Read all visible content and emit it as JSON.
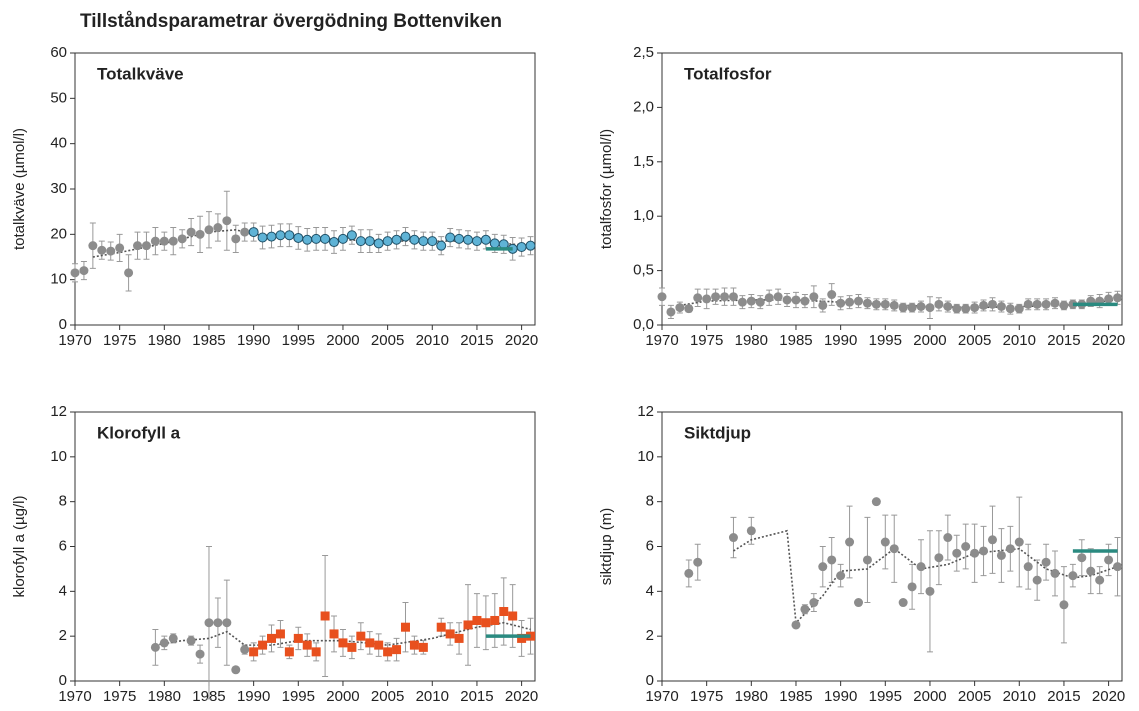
{
  "title": "Tillståndsparametrar övergödning Bottenviken",
  "chart_data": [
    {
      "type": "scatter",
      "title": "Totalkväve",
      "y_label": "totalkväve (µmol/l)",
      "xlim": [
        1970,
        2021.5
      ],
      "ylim": [
        0,
        60
      ],
      "xticks": [
        1970,
        1975,
        1980,
        1985,
        1990,
        1995,
        2000,
        2005,
        2010,
        2015,
        2020
      ],
      "yticks": [
        0,
        10,
        20,
        30,
        40,
        50,
        60
      ],
      "series": [
        {
          "color": "#8c8c8c",
          "marker": "circle",
          "x": [
            1970,
            1971,
            1972,
            1973,
            1974,
            1975,
            1976,
            1977,
            1978,
            1979,
            1980,
            1981,
            1982,
            1983,
            1984,
            1985,
            1986,
            1987,
            1988,
            1989
          ],
          "values": [
            11.5,
            12,
            17.5,
            16.5,
            16.3,
            17,
            11.5,
            17.5,
            17.5,
            18.5,
            18.5,
            18.5,
            19,
            20.5,
            20,
            21,
            21.5,
            23,
            19,
            20.5
          ],
          "errors": [
            2,
            2,
            5,
            2,
            2,
            3,
            4,
            3,
            3,
            3,
            2,
            3,
            2,
            3,
            4,
            4,
            3,
            6.5,
            3,
            2
          ]
        },
        {
          "color": "#5fb3d6",
          "marker": "circle-outline",
          "x": [
            1990,
            1991,
            1992,
            1993,
            1994,
            1995,
            1996,
            1997,
            1998,
            1999,
            2000,
            2001,
            2002,
            2003,
            2004,
            2005,
            2006,
            2007,
            2008,
            2009,
            2010,
            2011,
            2012,
            2013,
            2014,
            2015,
            2016,
            2017,
            2018,
            2019,
            2020,
            2021
          ],
          "values": [
            20.5,
            19.3,
            19.5,
            19.8,
            19.8,
            19.2,
            18.8,
            19,
            19,
            18.3,
            19,
            19.8,
            18.5,
            18.5,
            18,
            18.5,
            18.8,
            19.5,
            18.8,
            18.5,
            18.5,
            17.5,
            19.3,
            19,
            18.8,
            18.5,
            18.8,
            18,
            17.8,
            16.8,
            17.2,
            17.5
          ],
          "errors": [
            2,
            2.5,
            2.5,
            2.5,
            2.5,
            2.5,
            2.5,
            2.5,
            2.5,
            2.5,
            2.5,
            2,
            2.5,
            2.5,
            2,
            2,
            2,
            2,
            2,
            2,
            2,
            2,
            2,
            2,
            2,
            2,
            2,
            2,
            2,
            2.5,
            2,
            2
          ]
        }
      ],
      "trend": {
        "color": "#555555",
        "x": [
          1972,
          1975,
          1980,
          1985,
          1988,
          1990,
          1995,
          2000,
          2005,
          2010,
          2015,
          2021
        ],
        "values": [
          15,
          16,
          18,
          20.5,
          21,
          20,
          19.3,
          18.8,
          18.5,
          18.5,
          18.5,
          17.5
        ]
      },
      "target": {
        "color": "#2a8a80",
        "x": [
          2016,
          2019
        ],
        "values": [
          16.8,
          16.8
        ]
      }
    },
    {
      "type": "scatter",
      "title": "Totalfosfor",
      "y_label": "totalfosfor (µmol/l)",
      "xlim": [
        1970,
        2021.5
      ],
      "ylim": [
        0,
        2.5
      ],
      "xticks": [
        1970,
        1975,
        1980,
        1985,
        1990,
        1995,
        2000,
        2005,
        2010,
        2015,
        2020
      ],
      "yticks": [
        {
          "value": 0,
          "label": "0,0"
        },
        {
          "value": 0.5,
          "label": "0,5"
        },
        {
          "value": 1,
          "label": "1,0"
        },
        {
          "value": 1.5,
          "label": "1,5"
        },
        {
          "value": 2,
          "label": "2,0"
        },
        {
          "value": 2.5,
          "label": "2,5"
        }
      ],
      "series": [
        {
          "color": "#8c8c8c",
          "marker": "circle",
          "x": [
            1970,
            1971,
            1972,
            1973,
            1974,
            1975,
            1976,
            1977,
            1978,
            1979,
            1980,
            1981,
            1982,
            1983,
            1984,
            1985,
            1986,
            1987,
            1988,
            1989,
            1990,
            1991,
            1992,
            1993,
            1994,
            1995,
            1996,
            1997,
            1998,
            1999,
            2000,
            2001,
            2002,
            2003,
            2004,
            2005,
            2006,
            2007,
            2008,
            2009,
            2010,
            2011,
            2012,
            2013,
            2014,
            2015,
            2016,
            2017,
            2018,
            2019,
            2020,
            2021
          ],
          "values": [
            0.26,
            0.12,
            0.16,
            0.15,
            0.25,
            0.24,
            0.26,
            0.26,
            0.26,
            0.21,
            0.22,
            0.21,
            0.25,
            0.26,
            0.23,
            0.23,
            0.22,
            0.26,
            0.18,
            0.28,
            0.2,
            0.21,
            0.22,
            0.2,
            0.19,
            0.19,
            0.18,
            0.16,
            0.16,
            0.17,
            0.16,
            0.19,
            0.17,
            0.15,
            0.15,
            0.16,
            0.18,
            0.19,
            0.17,
            0.15,
            0.15,
            0.19,
            0.19,
            0.19,
            0.2,
            0.18,
            0.19,
            0.19,
            0.22,
            0.22,
            0.24,
            0.25
          ],
          "errors": [
            0.08,
            0.06,
            0.05,
            0.03,
            0.08,
            0.09,
            0.07,
            0.08,
            0.08,
            0.06,
            0.06,
            0.06,
            0.07,
            0.07,
            0.06,
            0.07,
            0.06,
            0.1,
            0.06,
            0.1,
            0.06,
            0.06,
            0.06,
            0.05,
            0.05,
            0.05,
            0.05,
            0.04,
            0.04,
            0.05,
            0.1,
            0.06,
            0.05,
            0.04,
            0.04,
            0.05,
            0.05,
            0.06,
            0.05,
            0.05,
            0.04,
            0.05,
            0.05,
            0.05,
            0.05,
            0.04,
            0.04,
            0.04,
            0.05,
            0.06,
            0.06,
            0.06
          ]
        }
      ],
      "trend": {
        "color": "#555555",
        "x": [
          1972,
          1975,
          1980,
          1985,
          1990,
          1995,
          2000,
          2005,
          2010,
          2015,
          2021
        ],
        "values": [
          0.18,
          0.22,
          0.23,
          0.23,
          0.21,
          0.19,
          0.17,
          0.16,
          0.17,
          0.18,
          0.23
        ]
      },
      "target": {
        "color": "#2a8a80",
        "x": [
          2016,
          2021
        ],
        "values": [
          0.19,
          0.19
        ]
      }
    },
    {
      "type": "scatter",
      "title": "Klorofyll a",
      "y_label": "klorofyll a (µg/l)",
      "xlim": [
        1970,
        2021.5
      ],
      "ylim": [
        0,
        12
      ],
      "xticks": [
        1970,
        1975,
        1980,
        1985,
        1990,
        1995,
        2000,
        2005,
        2010,
        2015,
        2020
      ],
      "yticks": [
        0,
        2,
        4,
        6,
        8,
        10,
        12
      ],
      "series": [
        {
          "color": "#8c8c8c",
          "marker": "circle",
          "x": [
            1979,
            1980,
            1981,
            1983,
            1984,
            1985,
            1986,
            1987,
            1988,
            1989
          ],
          "values": [
            1.5,
            1.7,
            1.9,
            1.8,
            1.2,
            2.6,
            2.6,
            2.6,
            0.5,
            1.4
          ],
          "errors": [
            0.8,
            0.3,
            0.2,
            0.2,
            0.4,
            3.4,
            1.1,
            1.9,
            0.1,
            0.2
          ]
        },
        {
          "color": "#e8501e",
          "marker": "square",
          "x": [
            1990,
            1991,
            1992,
            1993,
            1994,
            1995,
            1996,
            1997,
            1998,
            1999,
            2000,
            2001,
            2002,
            2003,
            2004,
            2005,
            2006,
            2007,
            2008,
            2009,
            2011,
            2012,
            2013,
            2014,
            2015,
            2016,
            2017,
            2018,
            2019,
            2020,
            2021
          ],
          "values": [
            1.3,
            1.6,
            1.9,
            2.1,
            1.3,
            1.9,
            1.6,
            1.3,
            2.9,
            2.1,
            1.7,
            1.5,
            2.0,
            1.7,
            1.6,
            1.3,
            1.4,
            2.4,
            1.6,
            1.5,
            2.4,
            2.1,
            1.9,
            2.5,
            2.7,
            2.6,
            2.7,
            3.1,
            2.9,
            1.9,
            2.0
          ],
          "errors": [
            0.4,
            0.4,
            0.6,
            0.6,
            0.3,
            0.5,
            0.5,
            0.4,
            2.7,
            0.8,
            0.6,
            0.5,
            0.6,
            0.5,
            0.5,
            0.4,
            0.5,
            1.1,
            0.4,
            0.3,
            0.4,
            0.5,
            0.7,
            1.8,
            1.2,
            1.2,
            1.2,
            1.5,
            1.4,
            0.8,
            0.8
          ]
        }
      ],
      "trend": {
        "color": "#555555",
        "x": [
          1979,
          1982,
          1985,
          1987,
          1989,
          1992,
          1995,
          2000,
          2005,
          2010,
          2015,
          2018,
          2021
        ],
        "values": [
          1.6,
          1.8,
          1.9,
          2.2,
          1.6,
          1.6,
          1.8,
          1.8,
          1.6,
          1.9,
          2.4,
          2.6,
          2.3
        ]
      },
      "target": {
        "color": "#2a8a80",
        "x": [
          2016,
          2021
        ],
        "values": [
          2.0,
          2.0
        ]
      }
    },
    {
      "type": "scatter",
      "title": "Siktdjup",
      "y_label": "siktdjup (m)",
      "xlim": [
        1970,
        2021.5
      ],
      "ylim": [
        0,
        12
      ],
      "xticks": [
        1970,
        1975,
        1980,
        1985,
        1990,
        1995,
        2000,
        2005,
        2010,
        2015,
        2020
      ],
      "yticks": [
        0,
        2,
        4,
        6,
        8,
        10,
        12
      ],
      "series": [
        {
          "color": "#8c8c8c",
          "marker": "circle",
          "x": [
            1973,
            1974,
            1978,
            1980,
            1985,
            1986,
            1987,
            1988,
            1989,
            1990,
            1991,
            1992,
            1993,
            1994,
            1995,
            1996,
            1997,
            1998,
            1999,
            2000,
            2001,
            2002,
            2003,
            2004,
            2005,
            2006,
            2007,
            2008,
            2009,
            2010,
            2011,
            2012,
            2013,
            2014,
            2015,
            2016,
            2017,
            2018,
            2019,
            2020,
            2021
          ],
          "values": [
            4.8,
            5.3,
            6.4,
            6.7,
            2.5,
            3.2,
            3.5,
            5.1,
            5.4,
            4.7,
            6.2,
            3.5,
            5.4,
            8.0,
            6.2,
            5.9,
            3.5,
            4.2,
            5.1,
            4.0,
            5.5,
            6.4,
            5.7,
            6.0,
            5.7,
            5.8,
            6.3,
            5.6,
            5.9,
            6.2,
            5.1,
            4.5,
            5.3,
            4.8,
            3.4,
            4.7,
            5.5,
            4.9,
            4.5,
            5.4,
            5.1
          ],
          "errors": [
            0.6,
            0.8,
            0.9,
            0.6,
            0.1,
            0.2,
            0.4,
            0.9,
            1.0,
            0.5,
            1.6,
            0,
            1.9,
            0,
            1.2,
            1.5,
            0,
            1.0,
            1.2,
            2.7,
            1.2,
            1.0,
            0.8,
            1.0,
            1.3,
            1.1,
            1.5,
            1.2,
            1.0,
            2.0,
            1.0,
            0.9,
            0.8,
            1.0,
            1.7,
            0.5,
            0.8,
            1.0,
            0.6,
            0.7,
            1.3
          ]
        }
      ],
      "trend": {
        "color": "#555555",
        "x": [
          1978,
          1980,
          1984,
          1985,
          1988,
          1990,
          1993,
          1996,
          1999,
          2002,
          2005,
          2010,
          2013,
          2016,
          2018,
          2021
        ],
        "values": [
          5.8,
          6.3,
          6.7,
          2.6,
          3.8,
          4.9,
          5.0,
          5.9,
          5.0,
          5.2,
          5.7,
          5.9,
          5.0,
          4.6,
          4.7,
          5.1
        ]
      },
      "target": {
        "color": "#2a8a80",
        "x": [
          2016,
          2021
        ],
        "values": [
          5.8,
          5.8
        ]
      }
    }
  ]
}
